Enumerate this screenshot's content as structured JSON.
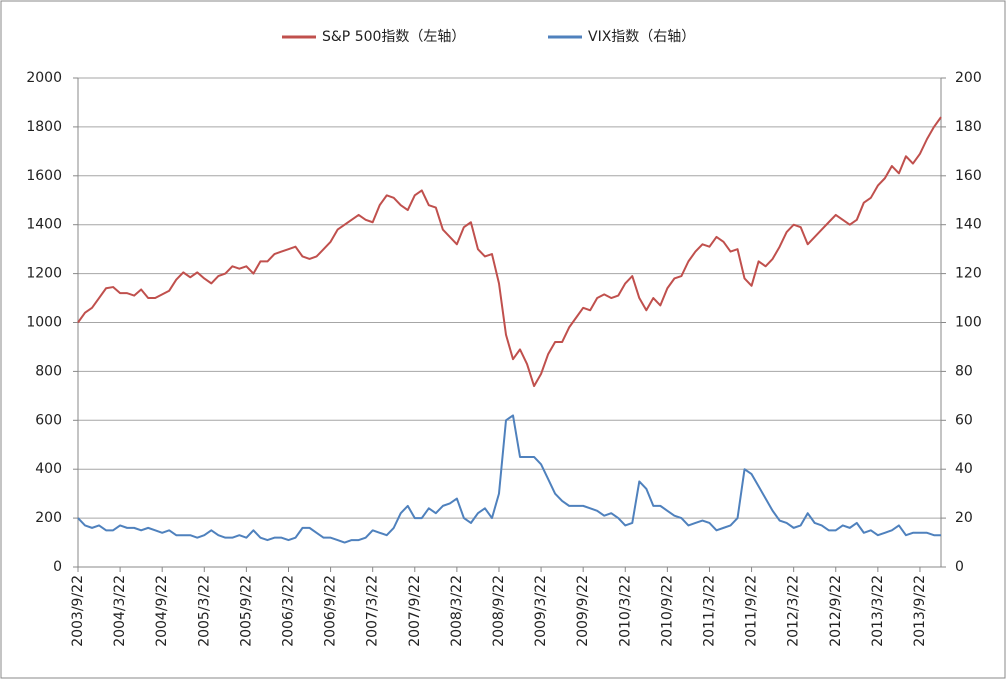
{
  "chart_data": {
    "type": "line",
    "categories": [
      "2003/9/22",
      null,
      null,
      null,
      null,
      null,
      "2004/3/22",
      null,
      null,
      null,
      null,
      null,
      "2004/9/22",
      null,
      null,
      null,
      null,
      null,
      "2005/3/22",
      null,
      null,
      null,
      null,
      null,
      "2005/9/22",
      null,
      null,
      null,
      null,
      null,
      "2006/3/22",
      null,
      null,
      null,
      null,
      null,
      "2006/9/22",
      null,
      null,
      null,
      null,
      null,
      "2007/3/22",
      null,
      null,
      null,
      null,
      null,
      "2007/9/22",
      null,
      null,
      null,
      null,
      null,
      "2008/3/22",
      null,
      null,
      null,
      null,
      null,
      "2008/9/22",
      null,
      null,
      null,
      null,
      null,
      "2009/3/22",
      null,
      null,
      null,
      null,
      null,
      "2009/9/22",
      null,
      null,
      null,
      null,
      null,
      "2010/3/22",
      null,
      null,
      null,
      null,
      null,
      "2010/9/22",
      null,
      null,
      null,
      null,
      null,
      "2011/3/22",
      null,
      null,
      null,
      null,
      null,
      "2011/9/22",
      null,
      null,
      null,
      null,
      null,
      "2012/3/22",
      null,
      null,
      null,
      null,
      null,
      "2012/9/22",
      null,
      null,
      null,
      null,
      null,
      "2013/3/22",
      null,
      null,
      null,
      null,
      null,
      "2013/9/22",
      null,
      null,
      null
    ],
    "series": [
      {
        "name": "S&P 500指数（左轴）",
        "color": "#c0504d",
        "axis": "y",
        "values": [
          1000,
          1040,
          1060,
          1100,
          1140,
          1145,
          1120,
          1120,
          1110,
          1135,
          1100,
          1100,
          1115,
          1130,
          1175,
          1205,
          1185,
          1205,
          1180,
          1160,
          1190,
          1200,
          1230,
          1220,
          1230,
          1200,
          1250,
          1250,
          1280,
          1290,
          1300,
          1310,
          1270,
          1260,
          1270,
          1300,
          1330,
          1380,
          1400,
          1420,
          1440,
          1420,
          1410,
          1480,
          1520,
          1510,
          1480,
          1460,
          1520,
          1540,
          1480,
          1470,
          1380,
          1350,
          1320,
          1390,
          1410,
          1300,
          1270,
          1280,
          1160,
          950,
          850,
          890,
          830,
          740,
          790,
          870,
          920,
          920,
          980,
          1020,
          1060,
          1050,
          1100,
          1115,
          1100,
          1110,
          1160,
          1190,
          1100,
          1050,
          1100,
          1070,
          1140,
          1180,
          1190,
          1250,
          1290,
          1320,
          1310,
          1350,
          1330,
          1290,
          1300,
          1180,
          1150,
          1250,
          1230,
          1260,
          1310,
          1370,
          1400,
          1390,
          1320,
          1350,
          1380,
          1410,
          1440,
          1420,
          1400,
          1420,
          1490,
          1510,
          1560,
          1590,
          1640,
          1610,
          1680,
          1650,
          1690,
          1750,
          1800,
          1840
        ]
      },
      {
        "name": "VIX指数（右轴）",
        "color": "#4f81bd",
        "axis": "y2",
        "values": [
          20,
          17,
          16,
          17,
          15,
          15,
          17,
          16,
          16,
          15,
          16,
          15,
          14,
          15,
          13,
          13,
          13,
          12,
          13,
          15,
          13,
          12,
          12,
          13,
          12,
          15,
          12,
          11,
          12,
          12,
          11,
          12,
          16,
          16,
          14,
          12,
          12,
          11,
          10,
          11,
          11,
          12,
          15,
          14,
          13,
          16,
          22,
          25,
          20,
          20,
          24,
          22,
          25,
          26,
          28,
          20,
          18,
          22,
          24,
          20,
          30,
          60,
          62,
          45,
          45,
          45,
          42,
          36,
          30,
          27,
          25,
          25,
          25,
          24,
          23,
          21,
          22,
          20,
          17,
          18,
          35,
          32,
          25,
          25,
          23,
          21,
          20,
          17,
          18,
          19,
          18,
          15,
          16,
          17,
          20,
          40,
          38,
          33,
          28,
          23,
          19,
          18,
          16,
          17,
          22,
          18,
          17,
          15,
          15,
          17,
          16,
          18,
          14,
          15,
          13,
          14,
          15,
          17,
          13,
          14,
          14,
          14,
          13,
          13
        ]
      }
    ],
    "ylim": [
      0,
      2000
    ],
    "yticks": [
      0,
      200,
      400,
      600,
      800,
      1000,
      1200,
      1400,
      1600,
      1800,
      2000
    ],
    "y2lim": [
      0,
      200
    ],
    "y2ticks": [
      0,
      20,
      40,
      60,
      80,
      100,
      120,
      140,
      160,
      180,
      200
    ],
    "grid": true,
    "legend": "top"
  }
}
